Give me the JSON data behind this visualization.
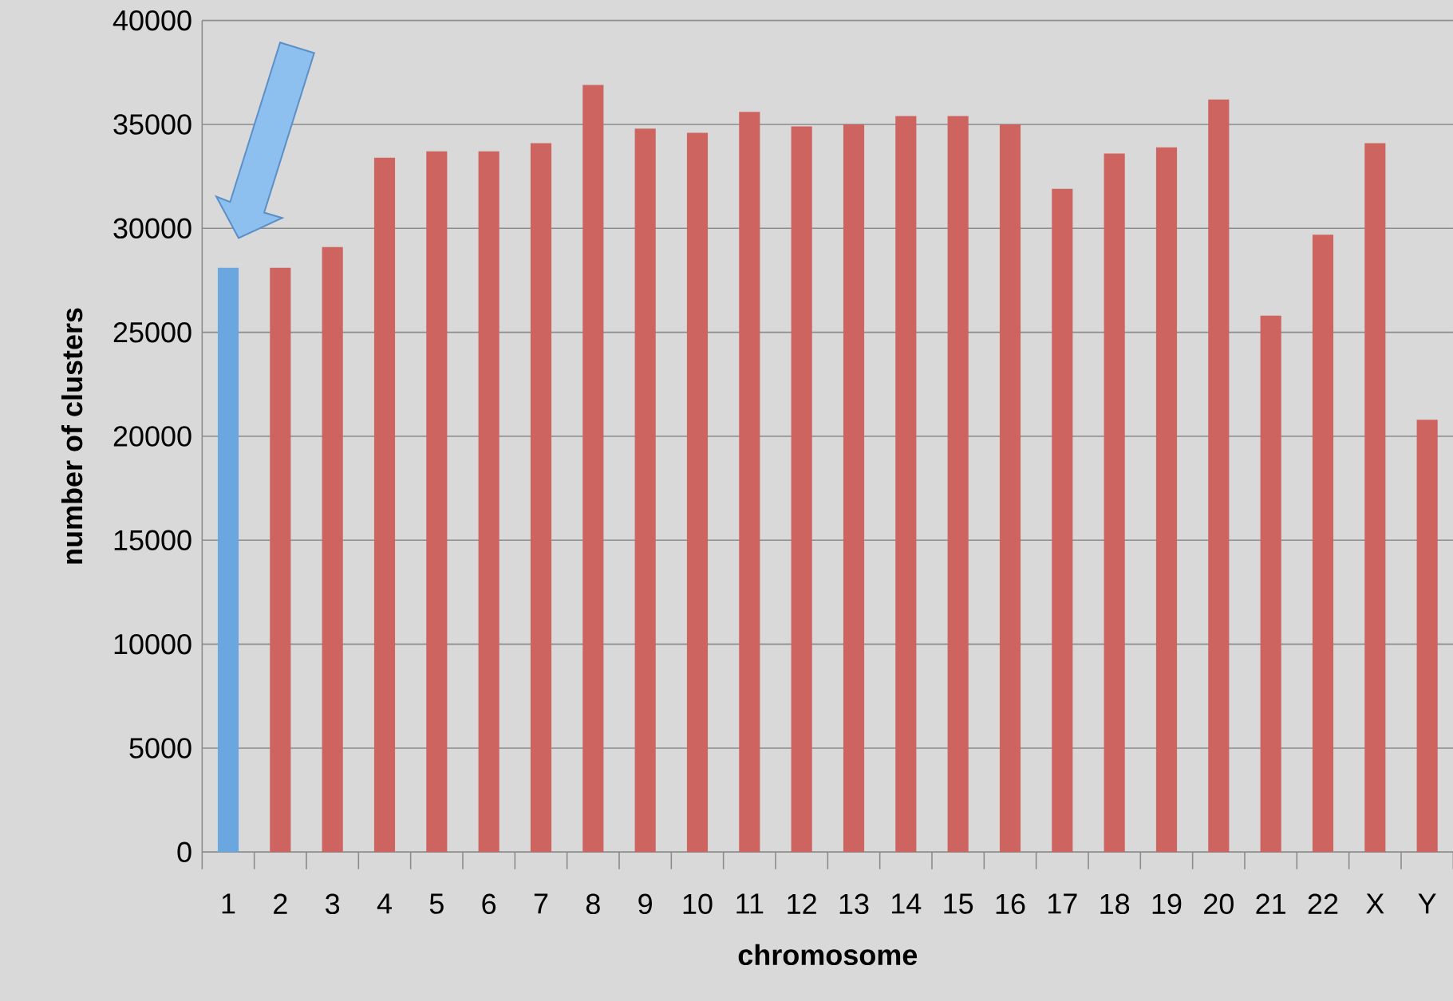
{
  "chart_data": {
    "type": "bar",
    "xlabel": "chromosome",
    "ylabel": "number of clusters",
    "categories": [
      "1",
      "2",
      "3",
      "4",
      "5",
      "6",
      "7",
      "8",
      "9",
      "10",
      "11",
      "12",
      "13",
      "14",
      "15",
      "16",
      "17",
      "18",
      "19",
      "20",
      "21",
      "22",
      "X",
      "Y"
    ],
    "values": [
      28100,
      28100,
      29100,
      33400,
      33700,
      33700,
      34100,
      36900,
      34800,
      34600,
      35600,
      34900,
      35000,
      35400,
      35400,
      35000,
      31900,
      33600,
      33900,
      36200,
      25800,
      29700,
      34100,
      20800
    ],
    "colors": [
      "#6aa7e0",
      "#cd6460",
      "#cd6460",
      "#cd6460",
      "#cd6460",
      "#cd6460",
      "#cd6460",
      "#cd6460",
      "#cd6460",
      "#cd6460",
      "#cd6460",
      "#cd6460",
      "#cd6460",
      "#cd6460",
      "#cd6460",
      "#cd6460",
      "#cd6460",
      "#cd6460",
      "#cd6460",
      "#cd6460",
      "#cd6460",
      "#cd6460",
      "#cd6460",
      "#cd6460"
    ],
    "ylim": [
      0,
      40000
    ],
    "yticks": [
      0,
      5000,
      10000,
      15000,
      20000,
      25000,
      30000,
      35000,
      40000
    ],
    "grid": "y"
  }
}
